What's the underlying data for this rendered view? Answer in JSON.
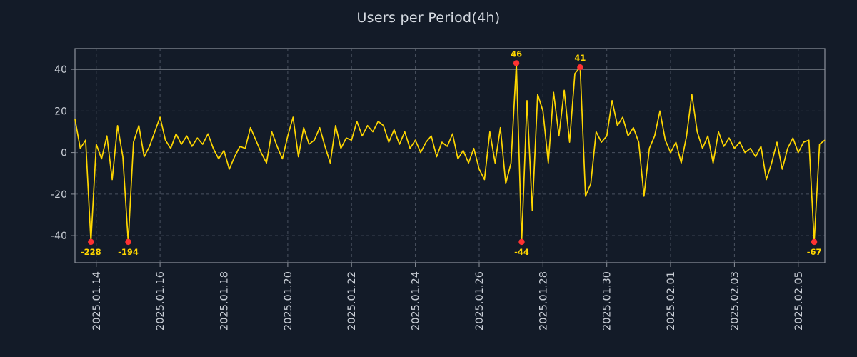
{
  "colors": {
    "background": "#131b28",
    "line": "#ffd700",
    "marker": "#ff3232",
    "text": "#c9ced6",
    "grid": "#4a5260",
    "border": "#8d939c",
    "annotation": "#ffd700"
  },
  "chart_data": {
    "type": "line",
    "title": "Users per Period(4h)",
    "xlabel": "",
    "ylabel": "",
    "x_start": "2025-01-13 08:00",
    "step_hours": 4,
    "values": [
      16,
      2,
      6,
      -228,
      4,
      -3,
      8,
      -13,
      13,
      -2,
      -194,
      5,
      13,
      -2,
      3,
      10,
      17,
      6,
      2,
      9,
      4,
      8,
      3,
      7,
      4,
      9,
      2,
      -3,
      1,
      -8,
      -2,
      3,
      2,
      12,
      6,
      0,
      -5,
      10,
      3,
      -3,
      8,
      17,
      -2,
      12,
      4,
      6,
      12,
      3,
      -5,
      13,
      2,
      7,
      6,
      15,
      8,
      13,
      10,
      15,
      13,
      5,
      11,
      4,
      10,
      2,
      6,
      0,
      5,
      8,
      -2,
      5,
      3,
      9,
      -3,
      1,
      -5,
      2,
      -8,
      -13,
      10,
      -5,
      12,
      -15,
      -5,
      46,
      -44,
      25,
      -28,
      28,
      20,
      -5,
      29,
      8,
      30,
      5,
      38,
      41,
      -21,
      -15,
      10,
      5,
      8,
      25,
      13,
      17,
      8,
      12,
      5,
      -21,
      2,
      8,
      20,
      6,
      0,
      5,
      -5,
      8,
      28,
      10,
      2,
      8,
      -5,
      10,
      3,
      7,
      2,
      5,
      0,
      2,
      -2,
      3,
      -13,
      -5,
      5,
      -8,
      2,
      7,
      0,
      5,
      6,
      -67,
      4,
      6
    ],
    "xticks": [
      {
        "index": 4,
        "label": "2025.01.14"
      },
      {
        "index": 16,
        "label": "2025.01.16"
      },
      {
        "index": 28,
        "label": "2025.01.18"
      },
      {
        "index": 40,
        "label": "2025.01.20"
      },
      {
        "index": 52,
        "label": "2025.01.22"
      },
      {
        "index": 64,
        "label": "2025.01.24"
      },
      {
        "index": 76,
        "label": "2025.01.26"
      },
      {
        "index": 88,
        "label": "2025.01.28"
      },
      {
        "index": 100,
        "label": "2025.01.30"
      },
      {
        "index": 112,
        "label": "2025.02.01"
      },
      {
        "index": 124,
        "label": "2025.02.03"
      },
      {
        "index": 136,
        "label": "2025.02.05"
      }
    ],
    "ytick_values": [
      -40,
      -20,
      0,
      20,
      40
    ],
    "ylim": [
      -53,
      50
    ],
    "clip": [
      -43,
      43
    ],
    "grid": "dashed",
    "solid_gridline_at": 40,
    "legend": "none",
    "annotations": [
      {
        "index": 3,
        "value": -228,
        "label": "-228",
        "placement": "below"
      },
      {
        "index": 10,
        "value": -194,
        "label": "-194",
        "placement": "below"
      },
      {
        "index": 83,
        "value": 46,
        "label": "46",
        "placement": "above"
      },
      {
        "index": 84,
        "value": -44,
        "label": "-44",
        "placement": "below"
      },
      {
        "index": 95,
        "value": 41,
        "label": "41",
        "placement": "above"
      },
      {
        "index": 139,
        "value": -67,
        "label": "-67",
        "placement": "below"
      }
    ]
  }
}
